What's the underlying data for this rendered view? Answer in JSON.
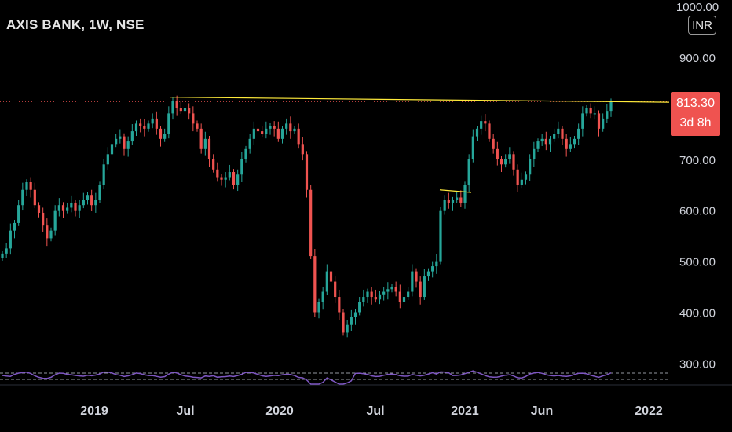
{
  "header": {
    "symbol": "AXIS BANK, 1W, NSE",
    "currency": "INR"
  },
  "price_tag": {
    "price": "813.30",
    "countdown": "3d 8h"
  },
  "colors": {
    "up": "#26a69a",
    "down": "#ef5350",
    "trendline": "#ffeb3b",
    "rsi": "#7e57c2",
    "axis_text": "#d1d4dc"
  },
  "chart_data": {
    "type": "candlestick",
    "symbol": "AXIS BANK",
    "interval": "1W",
    "exchange": "NSE",
    "y_axis": {
      "ticks": [
        "1000.00",
        "900.00",
        "700.00",
        "600.00",
        "500.00",
        "400.00",
        "300.00"
      ],
      "ylim": [
        290,
        1000
      ]
    },
    "x_axis": {
      "ticks": [
        "2019",
        "Jul",
        "2020",
        "Jul",
        "2021",
        "Jun",
        "2022"
      ]
    },
    "last_price": 813.3,
    "closes": [
      515,
      525,
      560,
      575,
      610,
      640,
      655,
      640,
      610,
      595,
      570,
      545,
      560,
      600,
      610,
      600,
      605,
      615,
      600,
      610,
      620,
      630,
      610,
      620,
      650,
      690,
      710,
      730,
      740,
      745,
      720,
      735,
      755,
      770,
      765,
      760,
      770,
      780,
      760,
      740,
      750,
      790,
      815,
      800,
      795,
      800,
      790,
      770,
      760,
      720,
      740,
      700,
      680,
      665,
      660,
      665,
      675,
      650,
      670,
      700,
      720,
      740,
      760,
      755,
      750,
      760,
      765,
      760,
      740,
      760,
      770,
      755,
      760,
      730,
      710,
      640,
      510,
      400,
      420,
      440,
      480,
      460,
      430,
      400,
      360,
      375,
      390,
      400,
      420,
      430,
      440,
      430,
      425,
      435,
      440,
      445,
      450,
      440,
      420,
      430,
      440,
      480,
      460,
      430,
      470,
      480,
      490,
      500,
      600,
      620,
      615,
      620,
      625,
      615,
      650,
      700,
      745,
      760,
      775,
      770,
      740,
      720,
      700,
      690,
      700,
      710,
      680,
      650,
      660,
      670,
      700,
      720,
      735,
      740,
      730,
      740,
      750,
      760,
      740,
      720,
      730,
      740,
      760,
      790,
      800,
      790,
      790,
      760,
      780,
      795,
      813.3
    ],
    "trendlines": [
      {
        "from": {
          "date": "2019-06",
          "price": 822
        },
        "to": {
          "date": "2021-10",
          "price": 812
        }
      },
      {
        "from": {
          "date": "2020-11",
          "price": 640
        },
        "to": {
          "date": "2020-12",
          "price": 635
        }
      }
    ],
    "rsi_pane": {
      "series": "RSI",
      "bands": "dashed"
    }
  }
}
